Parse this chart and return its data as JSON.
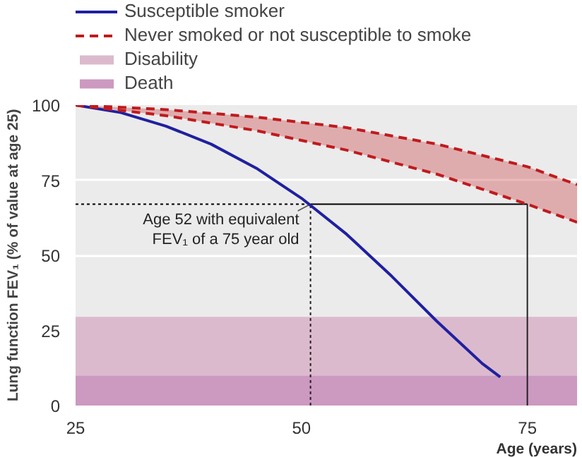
{
  "chart_data": {
    "type": "line",
    "xlabel": "Age (years)",
    "ylabel": "Lung function FEV₁ (% of value at age 25)",
    "x": [
      25,
      30,
      35,
      40,
      45,
      50,
      55,
      60,
      65,
      70,
      72
    ],
    "series": [
      {
        "name": "Susceptible smoker",
        "color": "#2020a0",
        "values": [
          100,
          97.5,
          93,
          87,
          79,
          69,
          57,
          43,
          28,
          14,
          9.5
        ],
        "line_style": "solid"
      },
      {
        "name": "Never smoked or not susceptible to smoke",
        "color": "#c01a1e",
        "x": [
          25,
          35,
          45,
          55,
          65,
          75,
          80.5
        ],
        "values": [
          100,
          98.5,
          96,
          92.5,
          87,
          79.5,
          73.5
        ],
        "line_style": "dashed",
        "lower": [
          100,
          96.5,
          91.5,
          85,
          77,
          67,
          61
        ],
        "upper": [
          100,
          98.5,
          96,
          92.5,
          87,
          79.5,
          73.5
        ]
      },
      {
        "color": "#c01a1e",
        "x": [
          25,
          35,
          45,
          55,
          65,
          75,
          80.5
        ],
        "values": [
          100,
          96.5,
          91.5,
          85,
          77,
          67,
          61
        ],
        "line_style": "dashed"
      }
    ],
    "bands": [
      {
        "axis": "y",
        "from": 10,
        "to": 29.5,
        "label": "Disability",
        "color": "#dcbacd"
      },
      {
        "axis": "y",
        "from": 0,
        "to": 10,
        "label": "Death",
        "color": "#cc99c1"
      }
    ],
    "ref_lines": [
      {
        "axis": "x",
        "value": 75
      },
      {
        "axis": "x",
        "value": 51,
        "line_style": "dashed"
      }
    ],
    "annotations": [
      {
        "text": "Age 52 with equivalent\nFEV₁ of a 75 year old",
        "x": 51,
        "y": 67
      }
    ],
    "xlim": [
      25,
      80.5
    ],
    "ylim": [
      0,
      100
    ],
    "xticks": [
      25,
      50,
      75
    ],
    "yticks": [
      0,
      25,
      50,
      75,
      100
    ],
    "grid": "y",
    "legend": "top left"
  }
}
